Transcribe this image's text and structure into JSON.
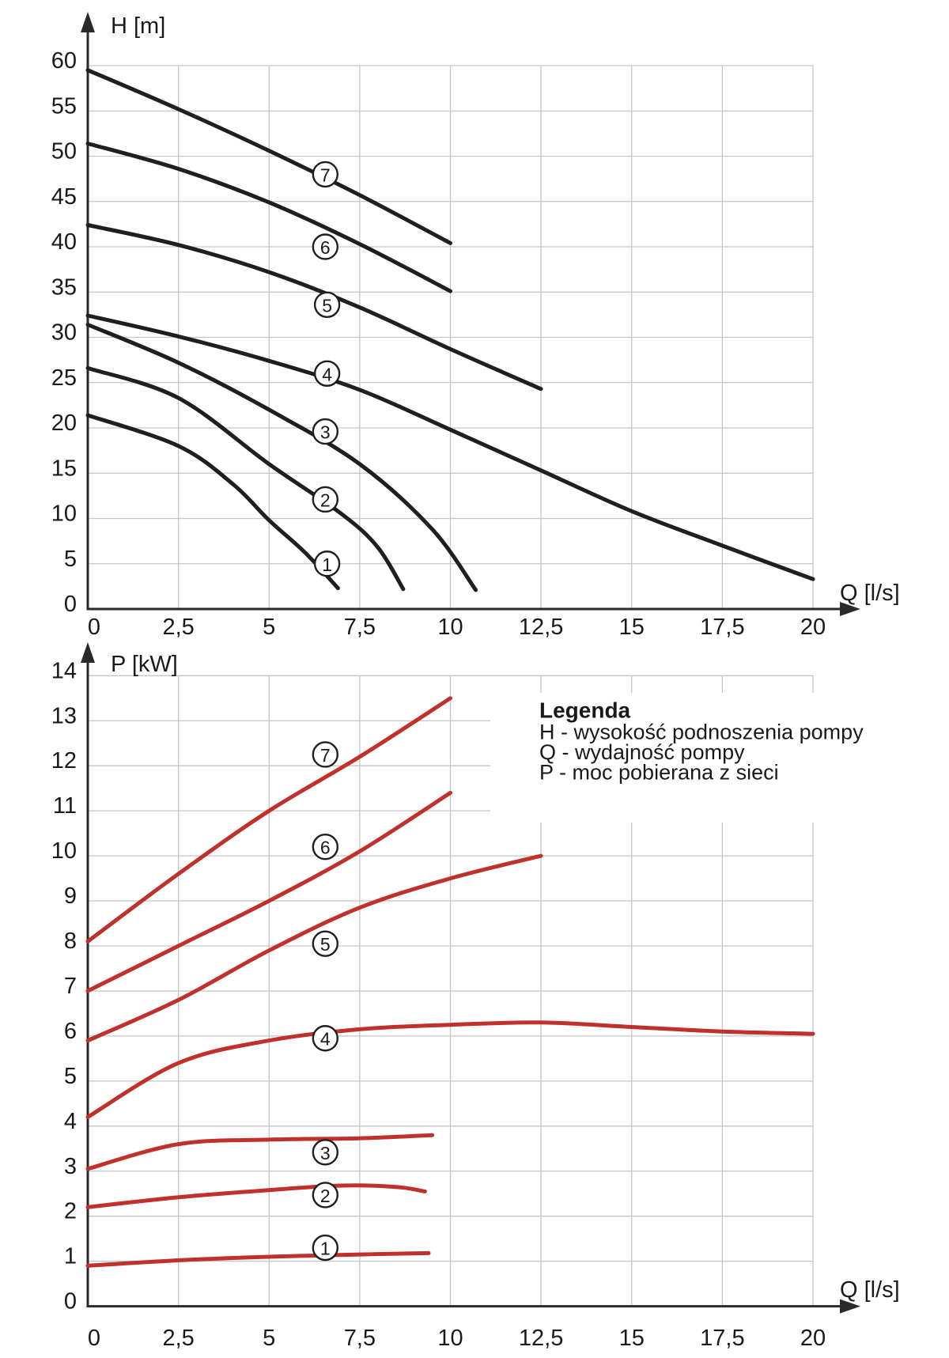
{
  "colors": {
    "head_curve": "#1f1f1f",
    "power_curve": "#c0312b",
    "grid": "#c6c6c6",
    "axis": "#2a2a2a",
    "text": "#1a1a1a",
    "circle_fill": "#ffffff"
  },
  "legend": {
    "title": "Legenda",
    "items": [
      "H - wysokość podnoszenia pompy",
      "Q - wydajność pompy",
      "P - moc pobierana z sieci"
    ]
  },
  "chart_data": [
    {
      "id": "head-chart",
      "type": "line",
      "title": "",
      "ylabel": "H [m]",
      "xlabel": "Q [l/s]",
      "xlim": [
        0,
        20
      ],
      "ylim": [
        0,
        60
      ],
      "grid": true,
      "legend_position": "none",
      "x_ticks": [
        0,
        2.5,
        5,
        7.5,
        10,
        12.5,
        15,
        17.5,
        20
      ],
      "x_tick_labels": [
        "0",
        "2,5",
        "5",
        "7,5",
        "10",
        "12,5",
        "15",
        "17,5",
        "20"
      ],
      "y_ticks": [
        0,
        5,
        10,
        15,
        20,
        25,
        30,
        35,
        40,
        45,
        50,
        55,
        60
      ],
      "y_tick_labels": [
        "0",
        "5",
        "10",
        "15",
        "20",
        "25",
        "30",
        "35",
        "40",
        "45",
        "50",
        "55",
        "60"
      ],
      "series": [
        {
          "name": "1",
          "points": [
            [
              0,
              21.4
            ],
            [
              2.5,
              18.0
            ],
            [
              4,
              13.8
            ],
            [
              5,
              9.8
            ],
            [
              6,
              6.2
            ],
            [
              6.9,
              2.3
            ]
          ]
        },
        {
          "name": "2",
          "points": [
            [
              0,
              26.6
            ],
            [
              2.5,
              23.3
            ],
            [
              5,
              16.0
            ],
            [
              7,
              10.5
            ],
            [
              8,
              6.8
            ],
            [
              8.7,
              2.2
            ]
          ]
        },
        {
          "name": "3",
          "points": [
            [
              0,
              31.4
            ],
            [
              2.5,
              27.2
            ],
            [
              5,
              22.0
            ],
            [
              7.5,
              16.0
            ],
            [
              9.5,
              8.8
            ],
            [
              10.7,
              2.1
            ]
          ]
        },
        {
          "name": "4",
          "points": [
            [
              0,
              32.4
            ],
            [
              2.5,
              30.1
            ],
            [
              5,
              27.4
            ],
            [
              7.5,
              24.2
            ],
            [
              10,
              19.8
            ],
            [
              12.5,
              15.3
            ],
            [
              15,
              10.8
            ],
            [
              17.5,
              7.0
            ],
            [
              20,
              3.3
            ]
          ]
        },
        {
          "name": "5",
          "points": [
            [
              0,
              42.4
            ],
            [
              2.5,
              40.2
            ],
            [
              5,
              37.2
            ],
            [
              7.5,
              33.3
            ],
            [
              10,
              28.7
            ],
            [
              12.5,
              24.3
            ]
          ]
        },
        {
          "name": "6",
          "points": [
            [
              0,
              51.4
            ],
            [
              2.5,
              48.6
            ],
            [
              5,
              44.9
            ],
            [
              7.5,
              40.3
            ],
            [
              10,
              35.1
            ]
          ]
        },
        {
          "name": "7",
          "points": [
            [
              0,
              59.5
            ],
            [
              2.5,
              55.2
            ],
            [
              5,
              50.6
            ],
            [
              7.5,
              45.7
            ],
            [
              10,
              40.4
            ]
          ]
        }
      ],
      "curve_labels": [
        {
          "text": "1",
          "q": 6.6,
          "value": 5.0
        },
        {
          "text": "2",
          "q": 6.55,
          "value": 12.1
        },
        {
          "text": "3",
          "q": 6.55,
          "value": 19.6
        },
        {
          "text": "4",
          "q": 6.6,
          "value": 26.0
        },
        {
          "text": "5",
          "q": 6.6,
          "value": 33.6
        },
        {
          "text": "6",
          "q": 6.55,
          "value": 40.0
        },
        {
          "text": "7",
          "q": 6.55,
          "value": 48.0
        }
      ]
    },
    {
      "id": "power-chart",
      "type": "line",
      "title": "",
      "ylabel": "P [kW]",
      "xlabel": "Q [l/s]",
      "xlim": [
        0,
        20
      ],
      "ylim": [
        0,
        14
      ],
      "grid": true,
      "legend_position": "upper-right",
      "x_ticks": [
        0,
        2.5,
        5,
        7.5,
        10,
        12.5,
        15,
        17.5,
        20
      ],
      "x_tick_labels": [
        "0",
        "2,5",
        "5",
        "7,5",
        "10",
        "12,5",
        "15",
        "17,5",
        "20"
      ],
      "y_ticks": [
        0,
        1,
        2,
        3,
        4,
        5,
        6,
        7,
        8,
        9,
        10,
        11,
        12,
        13,
        14
      ],
      "y_tick_labels": [
        "0",
        "1",
        "2",
        "3",
        "4",
        "5",
        "6",
        "7",
        "8",
        "9",
        "10",
        "11",
        "12",
        "13",
        "14"
      ],
      "series": [
        {
          "name": "1",
          "points": [
            [
              0,
              0.9
            ],
            [
              2.5,
              1.02
            ],
            [
              5,
              1.1
            ],
            [
              7.5,
              1.15
            ],
            [
              9.4,
              1.18
            ]
          ]
        },
        {
          "name": "2",
          "points": [
            [
              0,
              2.2
            ],
            [
              2.5,
              2.42
            ],
            [
              5,
              2.58
            ],
            [
              7,
              2.68
            ],
            [
              8.5,
              2.65
            ],
            [
              9.3,
              2.55
            ]
          ]
        },
        {
          "name": "3",
          "points": [
            [
              0,
              3.05
            ],
            [
              2.5,
              3.6
            ],
            [
              5,
              3.7
            ],
            [
              7.5,
              3.73
            ],
            [
              9.5,
              3.8
            ]
          ]
        },
        {
          "name": "4",
          "points": [
            [
              0,
              4.2
            ],
            [
              2.5,
              5.4
            ],
            [
              5,
              5.9
            ],
            [
              7.5,
              6.15
            ],
            [
              10,
              6.25
            ],
            [
              12.5,
              6.3
            ],
            [
              15,
              6.2
            ],
            [
              17.5,
              6.1
            ],
            [
              20,
              6.05
            ]
          ]
        },
        {
          "name": "5",
          "points": [
            [
              0,
              5.9
            ],
            [
              2.5,
              6.8
            ],
            [
              5,
              7.9
            ],
            [
              7.5,
              8.85
            ],
            [
              10,
              9.5
            ],
            [
              12.5,
              10.0
            ]
          ]
        },
        {
          "name": "6",
          "points": [
            [
              0,
              7.0
            ],
            [
              2.5,
              8.0
            ],
            [
              5,
              9.0
            ],
            [
              7.5,
              10.1
            ],
            [
              10,
              11.4
            ]
          ]
        },
        {
          "name": "7",
          "points": [
            [
              0,
              8.1
            ],
            [
              2.5,
              9.6
            ],
            [
              5,
              11.0
            ],
            [
              7.5,
              12.2
            ],
            [
              10,
              13.5
            ]
          ]
        }
      ],
      "curve_labels": [
        {
          "text": "1",
          "q": 6.55,
          "value": 1.3
        },
        {
          "text": "2",
          "q": 6.55,
          "value": 2.47
        },
        {
          "text": "3",
          "q": 6.55,
          "value": 3.42
        },
        {
          "text": "4",
          "q": 6.55,
          "value": 5.95
        },
        {
          "text": "5",
          "q": 6.55,
          "value": 8.05
        },
        {
          "text": "6",
          "q": 6.55,
          "value": 10.2
        },
        {
          "text": "7",
          "q": 6.55,
          "value": 12.25
        }
      ]
    }
  ]
}
